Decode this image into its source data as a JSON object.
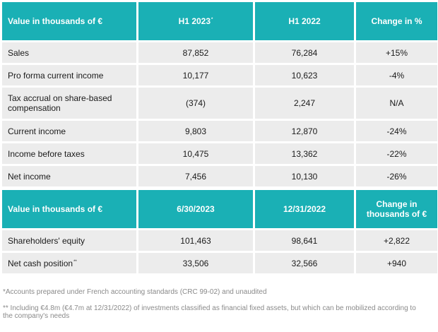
{
  "table1": {
    "headers": [
      "Value in thousands of €",
      "H1 2023",
      "H1 2022",
      "Change in %"
    ],
    "header_sup": "*",
    "rows": [
      {
        "label": "Sales",
        "h1_2023": "87,852",
        "h1_2022": "76,284",
        "change": "+15%"
      },
      {
        "label": "Pro forma current income",
        "h1_2023": "10,177",
        "h1_2022": "10,623",
        "change": "-4%"
      },
      {
        "label": "Tax accrual on share-based compensation",
        "h1_2023": "(374)",
        "h1_2022": "2,247",
        "change": "N/A"
      },
      {
        "label": "Current income",
        "h1_2023": "9,803",
        "h1_2022": "12,870",
        "change": "-24%"
      },
      {
        "label": "Income before taxes",
        "h1_2023": "10,475",
        "h1_2022": "13,362",
        "change": "-22%"
      },
      {
        "label": "Net income",
        "h1_2023": "7,456",
        "h1_2022": "10,130",
        "change": "-26%"
      }
    ]
  },
  "table2": {
    "headers": [
      "Value in thousands of €",
      "6/30/2023",
      "12/31/2022",
      "Change in thousands of €"
    ],
    "rows": [
      {
        "label": "Shareholders' equity",
        "label_sup": "",
        "a": "101,463",
        "b": "98,641",
        "change": "+2,822"
      },
      {
        "label": "Net cash position",
        "label_sup": "**",
        "a": "33,506",
        "b": "32,566",
        "change": "+940"
      }
    ]
  },
  "footnotes": {
    "note1": "*Accounts prepared under French accounting standards (CRC 99-02) and unaudited",
    "note2": "** Including €4.8m (€4.7m at 12/31/2022) of investments classified as financial fixed assets, but which can be mobilized according to the company's needs"
  },
  "colors": {
    "header_bg": "#1ab0b5",
    "row_bg": "#ececec"
  }
}
